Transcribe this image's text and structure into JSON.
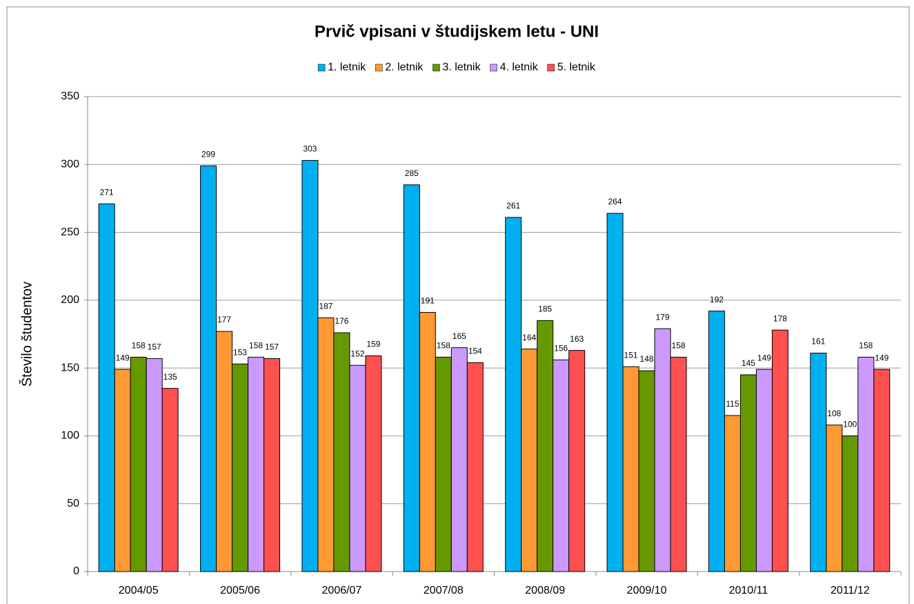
{
  "chart_data": {
    "type": "bar",
    "title": "Prvič vpisani v študijskem letu - UNI",
    "y_label": "Število študentov",
    "categories": [
      "2004/05",
      "2005/06",
      "2006/07",
      "2007/08",
      "2008/09",
      "2009/10",
      "2010/11",
      "2011/12"
    ],
    "series": [
      {
        "name": "1. letnik",
        "color": "#00b0f0",
        "values": [
          271,
          299,
          303,
          285,
          261,
          264,
          192,
          161
        ]
      },
      {
        "name": "2. letnik",
        "color": "#ff9933",
        "values": [
          149,
          177,
          187,
          191,
          164,
          151,
          115,
          108
        ]
      },
      {
        "name": "3. letnik",
        "color": "#669900",
        "values": [
          158,
          153,
          176,
          158,
          185,
          148,
          145,
          100
        ]
      },
      {
        "name": "4. letnik",
        "color": "#cc99ff",
        "values": [
          157,
          158,
          152,
          165,
          156,
          179,
          149,
          158
        ]
      },
      {
        "name": "5. letnik",
        "color": "#ff5050",
        "values": [
          135,
          157,
          159,
          154,
          163,
          158,
          178,
          149
        ]
      }
    ],
    "ylim": [
      0,
      350
    ],
    "yticks": [
      0,
      50,
      100,
      150,
      200,
      250,
      300,
      350
    ],
    "grid": true,
    "legend": "top"
  }
}
